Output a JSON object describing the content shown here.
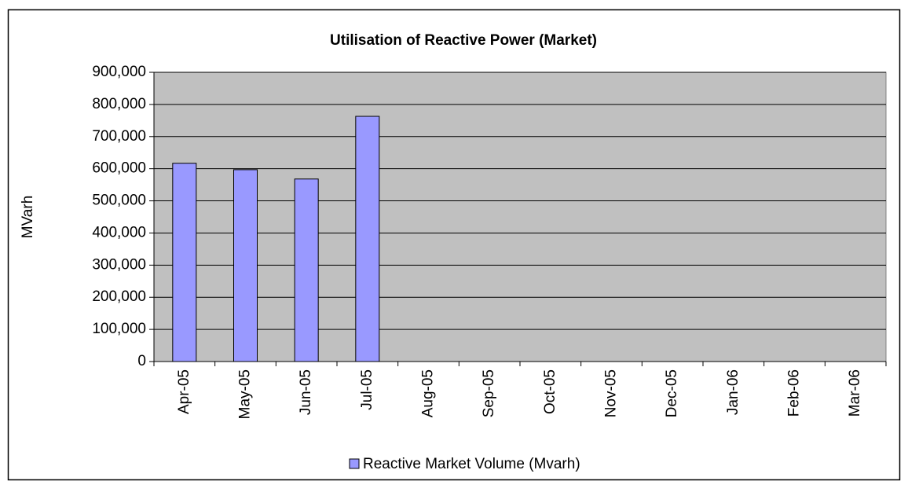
{
  "chart_data": {
    "type": "bar",
    "title": "Utilisation of Reactive Power (Market)",
    "ylabel": "MVarh",
    "categories": [
      "Apr-05",
      "May-05",
      "Jun-05",
      "Jul-05",
      "Aug-05",
      "Sep-05",
      "Oct-05",
      "Nov-05",
      "Dec-05",
      "Jan-06",
      "Feb-06",
      "Mar-06"
    ],
    "series": [
      {
        "name": "Reactive Market Volume (Mvarh)",
        "color": "#9999ff",
        "values": [
          617000,
          597000,
          568000,
          763000,
          null,
          null,
          null,
          null,
          null,
          null,
          null,
          null
        ]
      }
    ],
    "ylim": [
      0,
      900000
    ],
    "yticks": [
      0,
      {
        "value": 100000,
        "label": "100,000"
      },
      {
        "value": 200000,
        "label": "200,000"
      },
      {
        "value": 300000,
        "label": "300,000"
      },
      {
        "value": 400000,
        "label": "400,000"
      },
      {
        "value": 500000,
        "label": "500,000"
      },
      {
        "value": 600000,
        "label": "600,000"
      },
      {
        "value": 700000,
        "label": "700,000"
      },
      {
        "value": 800000,
        "label": "800,000"
      },
      {
        "value": 900000,
        "label": "900,000"
      }
    ],
    "grid": true,
    "legend": "bottom",
    "plot_background": "#c0c0c0"
  }
}
